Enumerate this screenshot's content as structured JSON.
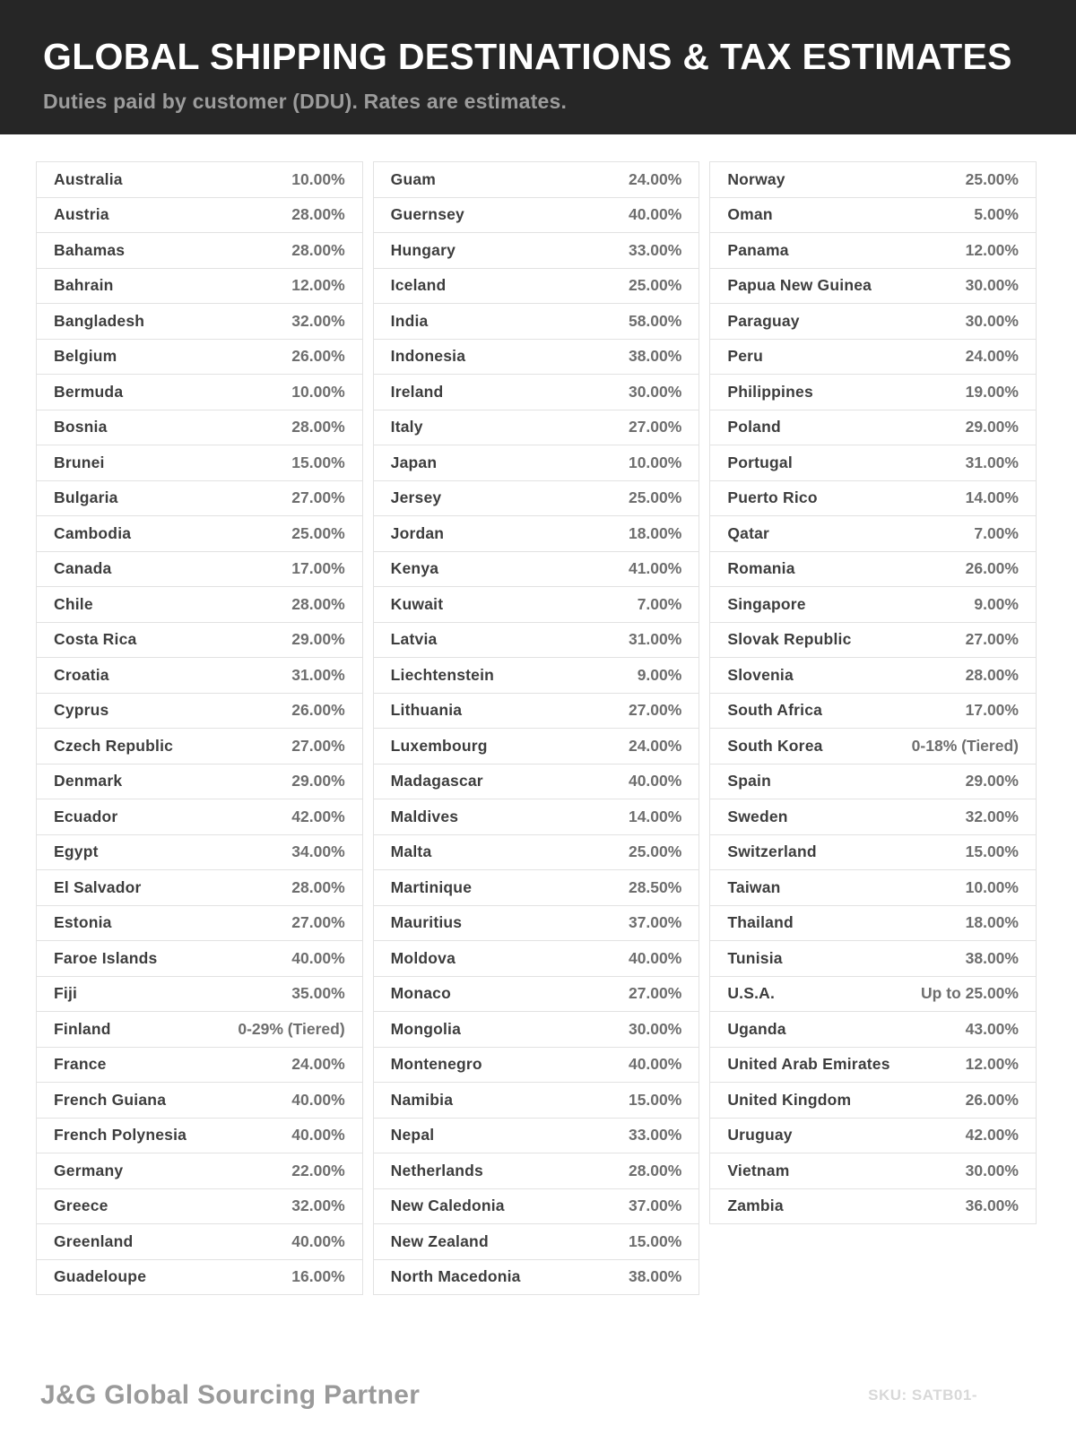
{
  "header": {
    "title": "GLOBAL SHIPPING DESTINATIONS & TAX ESTIMATES",
    "subtitle": "Duties paid by customer (DDU). Rates are estimates."
  },
  "colors": {
    "header_background": "#262626",
    "country_text": "#3d3d3d",
    "rate_text": "#6e6e6e",
    "border": "#e2e2e2"
  },
  "table": {
    "columns": [
      [
        {
          "country": "Australia",
          "rate": "10.00%"
        },
        {
          "country": "Austria",
          "rate": "28.00%"
        },
        {
          "country": "Bahamas",
          "rate": "28.00%"
        },
        {
          "country": "Bahrain",
          "rate": "12.00%"
        },
        {
          "country": "Bangladesh",
          "rate": "32.00%"
        },
        {
          "country": "Belgium",
          "rate": "26.00%"
        },
        {
          "country": "Bermuda",
          "rate": "10.00%"
        },
        {
          "country": "Bosnia",
          "rate": "28.00%"
        },
        {
          "country": "Brunei",
          "rate": "15.00%"
        },
        {
          "country": "Bulgaria",
          "rate": "27.00%"
        },
        {
          "country": "Cambodia",
          "rate": "25.00%"
        },
        {
          "country": "Canada",
          "rate": "17.00%"
        },
        {
          "country": "Chile",
          "rate": "28.00%"
        },
        {
          "country": "Costa Rica",
          "rate": "29.00%"
        },
        {
          "country": "Croatia",
          "rate": "31.00%"
        },
        {
          "country": "Cyprus",
          "rate": "26.00%"
        },
        {
          "country": "Czech Republic",
          "rate": "27.00%"
        },
        {
          "country": "Denmark",
          "rate": "29.00%"
        },
        {
          "country": "Ecuador",
          "rate": "42.00%"
        },
        {
          "country": "Egypt",
          "rate": "34.00%"
        },
        {
          "country": "El Salvador",
          "rate": "28.00%"
        },
        {
          "country": "Estonia",
          "rate": "27.00%"
        },
        {
          "country": "Faroe Islands",
          "rate": "40.00%"
        },
        {
          "country": "Fiji",
          "rate": "35.00%"
        },
        {
          "country": "Finland",
          "rate": "0-29% (Tiered)"
        },
        {
          "country": "France",
          "rate": "24.00%"
        },
        {
          "country": "French Guiana",
          "rate": "40.00%"
        },
        {
          "country": "French Polynesia",
          "rate": "40.00%"
        },
        {
          "country": "Germany",
          "rate": "22.00%"
        },
        {
          "country": "Greece",
          "rate": "32.00%"
        },
        {
          "country": "Greenland",
          "rate": "40.00%"
        },
        {
          "country": "Guadeloupe",
          "rate": "16.00%"
        }
      ],
      [
        {
          "country": "Guam",
          "rate": "24.00%"
        },
        {
          "country": "Guernsey",
          "rate": "40.00%"
        },
        {
          "country": "Hungary",
          "rate": "33.00%"
        },
        {
          "country": "Iceland",
          "rate": "25.00%"
        },
        {
          "country": "India",
          "rate": "58.00%"
        },
        {
          "country": "Indonesia",
          "rate": "38.00%"
        },
        {
          "country": "Ireland",
          "rate": "30.00%"
        },
        {
          "country": "Italy",
          "rate": "27.00%"
        },
        {
          "country": "Japan",
          "rate": "10.00%"
        },
        {
          "country": "Jersey",
          "rate": "25.00%"
        },
        {
          "country": "Jordan",
          "rate": "18.00%"
        },
        {
          "country": "Kenya",
          "rate": "41.00%"
        },
        {
          "country": "Kuwait",
          "rate": "7.00%"
        },
        {
          "country": "Latvia",
          "rate": "31.00%"
        },
        {
          "country": "Liechtenstein",
          "rate": "9.00%"
        },
        {
          "country": "Lithuania",
          "rate": "27.00%"
        },
        {
          "country": "Luxembourg",
          "rate": "24.00%"
        },
        {
          "country": "Madagascar",
          "rate": "40.00%"
        },
        {
          "country": "Maldives",
          "rate": "14.00%"
        },
        {
          "country": "Malta",
          "rate": "25.00%"
        },
        {
          "country": "Martinique",
          "rate": "28.50%"
        },
        {
          "country": "Mauritius",
          "rate": "37.00%"
        },
        {
          "country": "Moldova",
          "rate": "40.00%"
        },
        {
          "country": "Monaco",
          "rate": "27.00%"
        },
        {
          "country": "Mongolia",
          "rate": "30.00%"
        },
        {
          "country": "Montenegro",
          "rate": "40.00%"
        },
        {
          "country": "Namibia",
          "rate": "15.00%"
        },
        {
          "country": "Nepal",
          "rate": "33.00%"
        },
        {
          "country": "Netherlands",
          "rate": "28.00%"
        },
        {
          "country": "New Caledonia",
          "rate": "37.00%"
        },
        {
          "country": "New Zealand",
          "rate": "15.00%"
        },
        {
          "country": "North Macedonia",
          "rate": "38.00%"
        }
      ],
      [
        {
          "country": "Norway",
          "rate": "25.00%"
        },
        {
          "country": "Oman",
          "rate": "5.00%"
        },
        {
          "country": "Panama",
          "rate": "12.00%"
        },
        {
          "country": "Papua New Guinea",
          "rate": "30.00%"
        },
        {
          "country": "Paraguay",
          "rate": "30.00%"
        },
        {
          "country": "Peru",
          "rate": "24.00%"
        },
        {
          "country": "Philippines",
          "rate": "19.00%"
        },
        {
          "country": "Poland",
          "rate": "29.00%"
        },
        {
          "country": "Portugal",
          "rate": "31.00%"
        },
        {
          "country": "Puerto Rico",
          "rate": "14.00%"
        },
        {
          "country": "Qatar",
          "rate": "7.00%"
        },
        {
          "country": "Romania",
          "rate": "26.00%"
        },
        {
          "country": "Singapore",
          "rate": "9.00%"
        },
        {
          "country": "Slovak Republic",
          "rate": "27.00%"
        },
        {
          "country": "Slovenia",
          "rate": "28.00%"
        },
        {
          "country": "South Africa",
          "rate": "17.00%"
        },
        {
          "country": "South Korea",
          "rate": "0-18% (Tiered)"
        },
        {
          "country": "Spain",
          "rate": "29.00%"
        },
        {
          "country": "Sweden",
          "rate": "32.00%"
        },
        {
          "country": "Switzerland",
          "rate": "15.00%"
        },
        {
          "country": "Taiwan",
          "rate": "10.00%"
        },
        {
          "country": "Thailand",
          "rate": "18.00%"
        },
        {
          "country": "Tunisia",
          "rate": "38.00%"
        },
        {
          "country": "U.S.A.",
          "rate": "Up to 25.00%"
        },
        {
          "country": "Uganda",
          "rate": "43.00%"
        },
        {
          "country": "United Arab Emirates",
          "rate": "12.00%"
        },
        {
          "country": "United Kingdom",
          "rate": "26.00%"
        },
        {
          "country": "Uruguay",
          "rate": "42.00%"
        },
        {
          "country": "Vietnam",
          "rate": "30.00%"
        },
        {
          "country": "Zambia",
          "rate": "36.00%"
        }
      ]
    ]
  },
  "footer": {
    "brand": "J&G Global Sourcing Partner",
    "sku": "SKU: SATB01-"
  }
}
